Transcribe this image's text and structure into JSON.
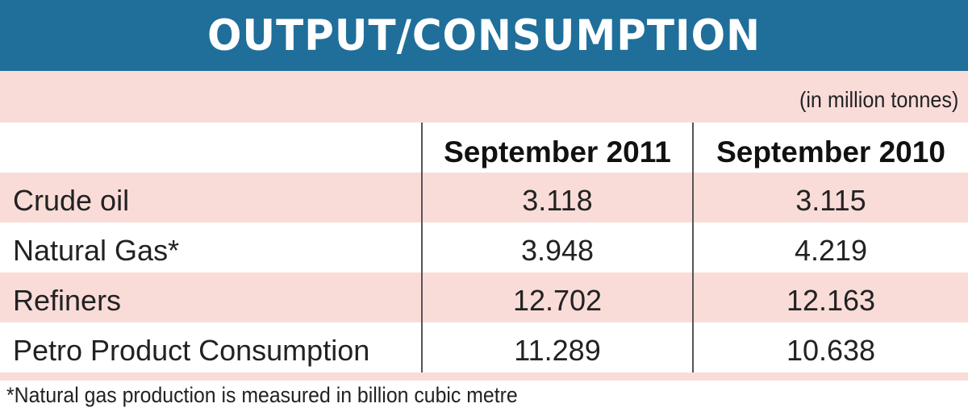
{
  "title": "OUTPUT/CONSUMPTION",
  "unit_note": "(in million tonnes)",
  "columns": [
    "September 2011",
    "September 2010"
  ],
  "rows": [
    {
      "label": "Crude oil",
      "values": [
        "3.118",
        "3.115"
      ]
    },
    {
      "label": "Natural Gas*",
      "values": [
        "3.948",
        "4.219"
      ]
    },
    {
      "label": "Refiners",
      "values": [
        "12.702",
        "12.163"
      ]
    },
    {
      "label": "Petro Product Consumption",
      "values": [
        "11.289",
        "10.638"
      ]
    }
  ],
  "footnote": "*Natural gas production is measured in billion cubic metre",
  "colors": {
    "header": "#1f6f9a",
    "band": "#f9dcd8"
  }
}
